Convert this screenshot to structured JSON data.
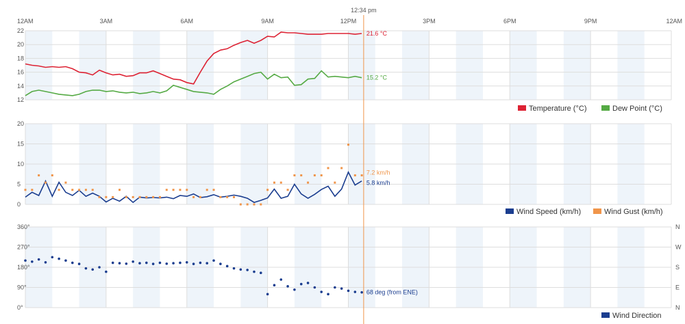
{
  "now_label": "12:34 pm",
  "colors": {
    "temperature": "#dd2233",
    "dew_point": "#55aa44",
    "wind_speed": "#1a3d8f",
    "wind_gust": "#f0954a",
    "wind_direction": "#1a3d8f",
    "now_line": "#f0954a",
    "band": "#eef4fa",
    "grid": "#dddddd"
  },
  "time_axis": {
    "labels": [
      "12AM",
      "3AM",
      "6AM",
      "9AM",
      "12PM",
      "3PM",
      "6PM",
      "9PM",
      "12AM"
    ],
    "range_hours": [
      0,
      24
    ],
    "now_hour": 12.57
  },
  "chart_data": [
    {
      "type": "line",
      "name": "temperature-panel",
      "title": "",
      "ylim": [
        12,
        22
      ],
      "yticks": [
        "12",
        "14",
        "16",
        "18",
        "20",
        "22"
      ],
      "grid": true,
      "legend_position": "bottom-right",
      "series": [
        {
          "name": "Temperature (°C)",
          "color": "#dd2233",
          "current_label": "21.6 °C",
          "x": [
            0,
            0.25,
            0.5,
            0.75,
            1,
            1.25,
            1.5,
            1.75,
            2,
            2.25,
            2.5,
            2.75,
            3,
            3.25,
            3.5,
            3.75,
            4,
            4.25,
            4.5,
            4.75,
            5,
            5.25,
            5.5,
            5.75,
            6,
            6.25,
            6.5,
            6.75,
            7,
            7.25,
            7.5,
            7.75,
            8,
            8.25,
            8.5,
            8.75,
            9,
            9.25,
            9.5,
            9.75,
            10,
            10.25,
            10.5,
            10.75,
            11,
            11.25,
            11.5,
            11.75,
            12,
            12.25,
            12.5
          ],
          "values": [
            17.2,
            17.0,
            16.9,
            16.7,
            16.8,
            16.7,
            16.8,
            16.5,
            16.0,
            15.9,
            15.6,
            16.3,
            15.9,
            15.6,
            15.7,
            15.4,
            15.5,
            15.9,
            15.9,
            16.2,
            15.8,
            15.4,
            15.0,
            14.9,
            14.5,
            14.3,
            16.0,
            17.6,
            18.7,
            19.2,
            19.4,
            19.9,
            20.3,
            20.6,
            20.2,
            20.6,
            21.2,
            21.1,
            21.8,
            21.7,
            21.7,
            21.6,
            21.5,
            21.5,
            21.5,
            21.6,
            21.6,
            21.6,
            21.6,
            21.5,
            21.6
          ]
        },
        {
          "name": "Dew Point (°C)",
          "color": "#55aa44",
          "current_label": "15.2 °C",
          "x": [
            0,
            0.25,
            0.5,
            0.75,
            1,
            1.25,
            1.5,
            1.75,
            2,
            2.25,
            2.5,
            2.75,
            3,
            3.25,
            3.5,
            3.75,
            4,
            4.25,
            4.5,
            4.75,
            5,
            5.25,
            5.5,
            5.75,
            6,
            6.25,
            6.5,
            6.75,
            7,
            7.25,
            7.5,
            7.75,
            8,
            8.25,
            8.5,
            8.75,
            9,
            9.25,
            9.5,
            9.75,
            10,
            10.25,
            10.5,
            10.75,
            11,
            11.25,
            11.5,
            11.75,
            12,
            12.25,
            12.5
          ],
          "values": [
            12.6,
            13.2,
            13.4,
            13.2,
            13.0,
            12.8,
            12.7,
            12.6,
            12.8,
            13.2,
            13.4,
            13.4,
            13.2,
            13.3,
            13.1,
            13.0,
            13.1,
            12.9,
            13.0,
            13.2,
            13.0,
            13.3,
            14.1,
            13.8,
            13.5,
            13.2,
            13.1,
            13.0,
            12.8,
            13.5,
            14.0,
            14.6,
            15.0,
            15.4,
            15.8,
            16.0,
            15.0,
            15.7,
            15.2,
            15.3,
            14.1,
            14.2,
            15.0,
            15.1,
            16.2,
            15.3,
            15.4,
            15.3,
            15.2,
            15.4,
            15.2
          ]
        }
      ]
    },
    {
      "type": "line",
      "name": "wind-panel",
      "title": "",
      "ylim": [
        0,
        20
      ],
      "yticks": [
        "0",
        "5",
        "10",
        "15",
        "20"
      ],
      "grid": true,
      "legend_position": "bottom-right",
      "series": [
        {
          "name": "Wind Speed (km/h)",
          "color": "#1a3d8f",
          "current_label": "5.8 km/h",
          "x": [
            0,
            0.25,
            0.5,
            0.75,
            1,
            1.25,
            1.5,
            1.75,
            2,
            2.25,
            2.5,
            2.75,
            3,
            3.25,
            3.5,
            3.75,
            4,
            4.25,
            4.5,
            4.75,
            5,
            5.25,
            5.5,
            5.75,
            6,
            6.25,
            6.5,
            6.75,
            7,
            7.25,
            7.5,
            7.75,
            8,
            8.25,
            8.5,
            8.75,
            9,
            9.25,
            9.5,
            9.75,
            10,
            10.25,
            10.5,
            10.75,
            11,
            11.25,
            11.5,
            11.75,
            12,
            12.25,
            12.5
          ],
          "values": [
            1.8,
            3.0,
            2.2,
            5.8,
            2.0,
            5.5,
            3.0,
            2.2,
            3.5,
            2.0,
            2.8,
            2.0,
            0.6,
            1.5,
            0.8,
            2.0,
            0.5,
            1.8,
            1.6,
            1.7,
            1.6,
            1.8,
            1.4,
            2.2,
            2.0,
            2.6,
            1.7,
            1.9,
            2.4,
            1.8,
            2.0,
            2.3,
            2.0,
            1.5,
            0.5,
            1.0,
            1.6,
            3.8,
            1.5,
            2.0,
            5.0,
            2.6,
            1.5,
            2.5,
            3.7,
            4.5,
            2.0,
            3.8,
            8.0,
            4.8,
            5.8
          ]
        },
        {
          "name": "Wind Gust (km/h)",
          "color": "#f0954a",
          "current_label": "7.2 km/h",
          "x": [
            0,
            0.25,
            0.5,
            0.75,
            1,
            1.25,
            1.5,
            1.75,
            2,
            2.25,
            2.5,
            2.75,
            3,
            3.25,
            3.5,
            3.75,
            4,
            4.25,
            4.5,
            4.75,
            5,
            5.25,
            5.5,
            5.75,
            6,
            6.25,
            6.5,
            6.75,
            7,
            7.25,
            7.5,
            7.75,
            8,
            8.25,
            8.5,
            8.75,
            9,
            9.25,
            9.5,
            9.75,
            10,
            10.25,
            10.5,
            10.75,
            11,
            11.25,
            11.5,
            11.75,
            12,
            12.25,
            12.5
          ],
          "values": [
            3.6,
            3.6,
            7.2,
            5.4,
            7.2,
            3.6,
            5.4,
            3.6,
            3.6,
            3.6,
            3.6,
            1.8,
            1.8,
            1.8,
            3.6,
            1.8,
            1.8,
            1.8,
            1.8,
            1.8,
            1.8,
            3.6,
            3.6,
            3.6,
            3.6,
            1.8,
            1.8,
            3.6,
            3.6,
            1.8,
            1.8,
            1.8,
            0.0,
            0.0,
            0.0,
            0.0,
            3.6,
            5.4,
            5.4,
            3.6,
            7.2,
            7.2,
            5.4,
            7.2,
            7.2,
            9.0,
            5.4,
            9.0,
            14.8,
            7.2,
            7.2
          ]
        }
      ]
    },
    {
      "type": "scatter",
      "name": "wind-direction-panel",
      "title": "",
      "ylim": [
        0,
        360
      ],
      "yticks": [
        "0°",
        "90°",
        "180°",
        "270°",
        "360°"
      ],
      "right_ticks": [
        "N",
        "E",
        "S",
        "W",
        "N"
      ],
      "grid": true,
      "legend_position": "bottom-right",
      "series": [
        {
          "name": "Wind Direction",
          "color": "#1a3d8f",
          "current_label": "68 deg (from ENE)",
          "x": [
            0,
            0.25,
            0.5,
            0.75,
            1,
            1.25,
            1.5,
            1.75,
            2,
            2.25,
            2.5,
            2.75,
            3,
            3.25,
            3.5,
            3.75,
            4,
            4.25,
            4.5,
            4.75,
            5,
            5.25,
            5.5,
            5.75,
            6,
            6.25,
            6.5,
            6.75,
            7,
            7.25,
            7.5,
            7.75,
            8,
            8.25,
            8.5,
            8.75,
            9,
            9.25,
            9.5,
            9.75,
            10,
            10.25,
            10.5,
            10.75,
            11,
            11.25,
            11.5,
            11.75,
            12,
            12.25,
            12.5
          ],
          "values": [
            210,
            205,
            215,
            202,
            225,
            218,
            210,
            200,
            195,
            175,
            170,
            180,
            160,
            200,
            198,
            196,
            205,
            198,
            200,
            195,
            200,
            196,
            198,
            200,
            202,
            195,
            200,
            198,
            210,
            195,
            185,
            175,
            170,
            168,
            160,
            155,
            60,
            100,
            125,
            95,
            80,
            105,
            110,
            90,
            70,
            60,
            90,
            85,
            75,
            70,
            68
          ]
        }
      ]
    }
  ]
}
